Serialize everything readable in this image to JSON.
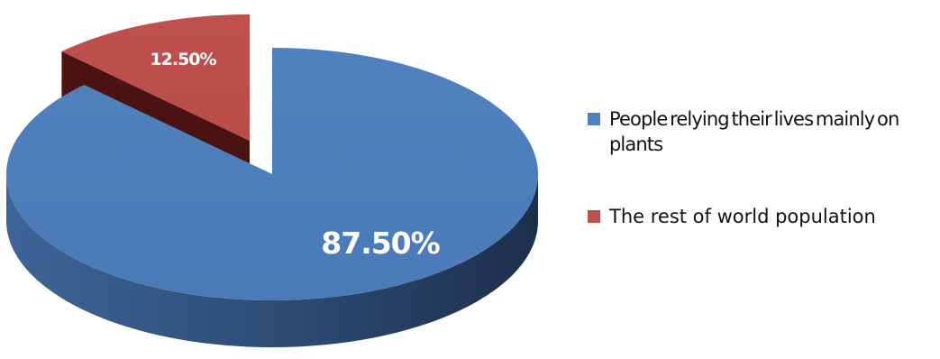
{
  "chart_data": {
    "type": "pie",
    "style": "3d-exploded",
    "title": "",
    "slices": [
      {
        "label": "People relying their lives mainly on plants",
        "value": 87.5,
        "data_label": "87.50%",
        "color": "#4F81BD",
        "side_color_dark": "#1F3250",
        "side_color_light": "#3E6598"
      },
      {
        "label": "The rest of world population",
        "value": 12.5,
        "data_label": "12.50%",
        "color": "#C0504D",
        "side_color_dark": "#4A1312",
        "side_color_light": "#7A2220"
      }
    ],
    "legend": {
      "position": "right",
      "items": [
        "People relying their lives mainly on plants",
        "The rest of world population"
      ]
    }
  }
}
